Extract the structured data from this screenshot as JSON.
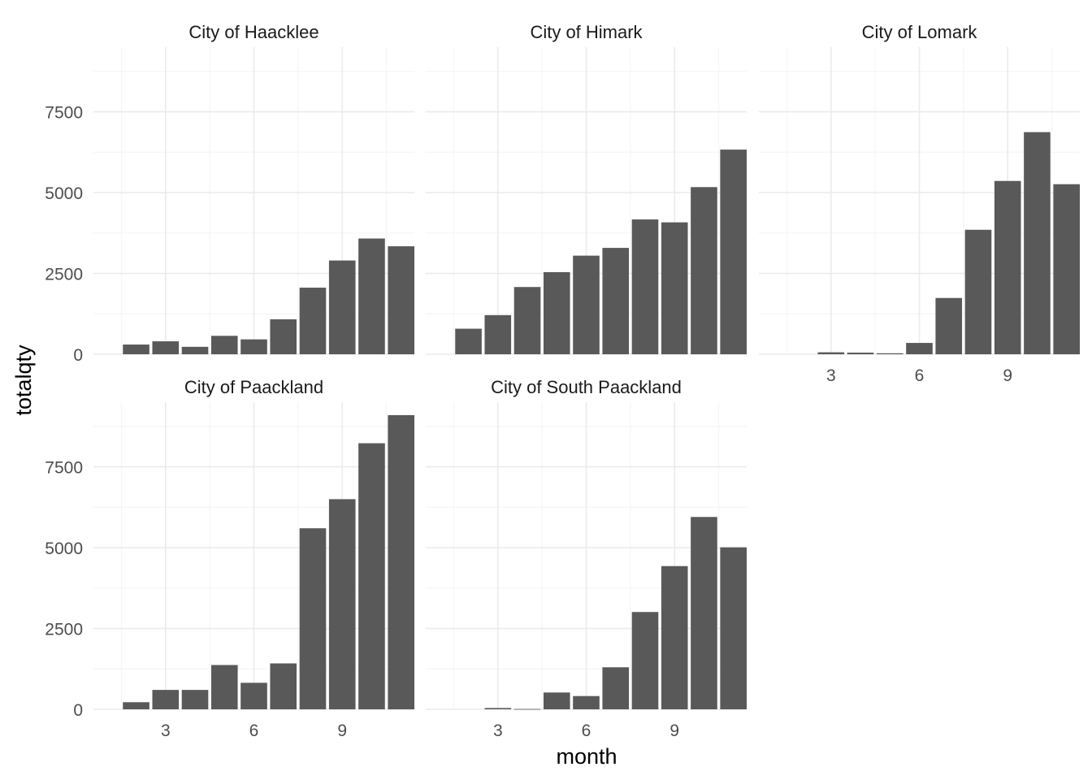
{
  "colors": {
    "bar": "#595959",
    "grid_major": "#ebebeb",
    "grid_minor": "#f5f5f5",
    "background": "#ffffff"
  },
  "chart_data": {
    "type": "bar",
    "xlabel": "month",
    "ylabel": "totalqty",
    "x_ticks": [
      3,
      6,
      9
    ],
    "y_ticks": [
      0,
      2500,
      5000,
      7500
    ],
    "ylim": [
      0,
      9500
    ],
    "xlim": [
      0.55,
      11.45
    ],
    "grid": true,
    "panels": [
      {
        "title": "City of Haacklee",
        "months": [
          2,
          3,
          4,
          5,
          6,
          7,
          8,
          9,
          10,
          11
        ],
        "values": [
          300,
          400,
          230,
          570,
          460,
          1080,
          2060,
          2900,
          3580,
          3340
        ]
      },
      {
        "title": "City of Himark",
        "months": [
          2,
          3,
          4,
          5,
          6,
          7,
          8,
          9,
          10,
          11
        ],
        "values": [
          790,
          1210,
          2080,
          2540,
          3050,
          3290,
          4170,
          4080,
          5170,
          6330
        ]
      },
      {
        "title": "City of Lomark",
        "months": [
          3,
          4,
          5,
          6,
          7,
          8,
          9,
          10,
          11
        ],
        "values": [
          60,
          50,
          30,
          350,
          1740,
          3850,
          5360,
          6870,
          5260
        ]
      },
      {
        "title": "City of Paackland",
        "months": [
          2,
          3,
          4,
          5,
          6,
          7,
          8,
          9,
          10,
          11
        ],
        "values": [
          220,
          600,
          600,
          1370,
          820,
          1420,
          5600,
          6500,
          8230,
          9100
        ]
      },
      {
        "title": "City of South Paackland",
        "months": [
          3,
          4,
          5,
          6,
          7,
          8,
          9,
          10,
          11
        ],
        "values": [
          40,
          10,
          520,
          410,
          1300,
          3010,
          4430,
          5950,
          5010
        ]
      }
    ]
  }
}
